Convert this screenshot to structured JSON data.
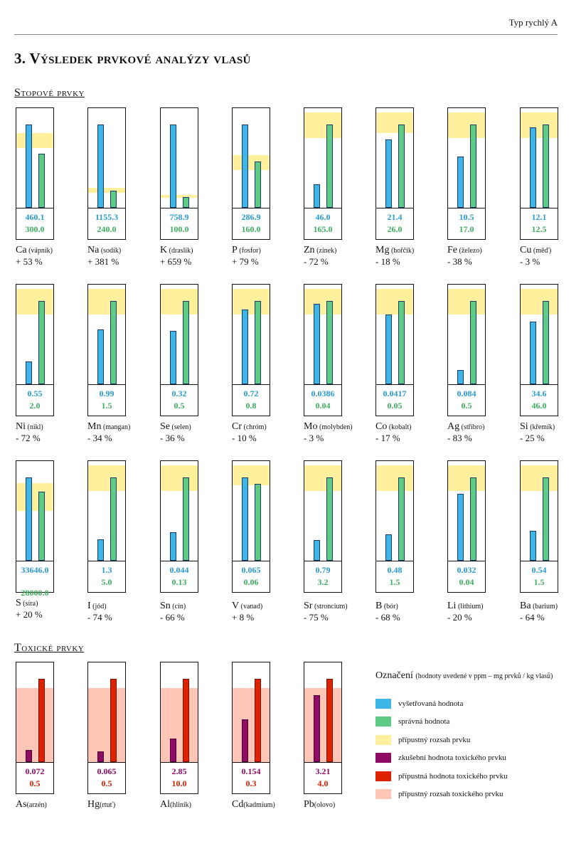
{
  "header": {
    "type_label": "Typ rychlý A"
  },
  "title": "3. Výsledek prvkové analýzy vlasů",
  "sections": {
    "trace": "Stopové prvky",
    "toxic": "Toxické prvky"
  },
  "colors": {
    "measured": "#3db5e6",
    "correct": "#5ecb85",
    "range": "#fff09e",
    "toxic_measured": "#8e0c63",
    "toxic_allowed": "#dd2200",
    "toxic_range": "#ffc6b8",
    "measured_text": "#2a9ad0",
    "correct_text": "#3eae5e",
    "toxic_measured_text": "#8e0c63",
    "toxic_allowed_text": "#d42000"
  },
  "chart_data": {
    "type": "bar",
    "title": "",
    "trace_elements": [
      {
        "symbol": "Ca",
        "name": "(vápník)",
        "measured": "460.1",
        "correct": "300.0",
        "pct": "+ 53 %",
        "range_pct": [
          60,
          75
        ]
      },
      {
        "symbol": "Na",
        "name": "(sodík)",
        "measured": "1155.3",
        "correct": "240.0",
        "pct": "+ 381 %",
        "range_pct": [
          15,
          20
        ]
      },
      {
        "symbol": "K",
        "name": "(draslík)",
        "measured": "758.9",
        "correct": "100.0",
        "pct": "+ 659 %",
        "range_pct": [
          10,
          13
        ]
      },
      {
        "symbol": "P",
        "name": "(fosfor)",
        "measured": "286.9",
        "correct": "160.0",
        "pct": "+ 79 %",
        "range_pct": [
          38,
          53
        ]
      },
      {
        "symbol": "Zn",
        "name": "(zinek)",
        "measured": "46.0",
        "correct": "165.0",
        "pct": "- 72 %",
        "range_pct": [
          70,
          96
        ]
      },
      {
        "symbol": "Mg",
        "name": "(hořčík)",
        "measured": "21.4",
        "correct": "26.0",
        "pct": "- 18 %",
        "range_pct": [
          75,
          96
        ]
      },
      {
        "symbol": "Fe",
        "name": "(železo)",
        "measured": "10.5",
        "correct": "17.0",
        "pct": "- 38 %",
        "range_pct": [
          70,
          96
        ]
      },
      {
        "symbol": "Cu",
        "name": "(měď)",
        "measured": "12.1",
        "correct": "12.5",
        "pct": "- 3 %",
        "range_pct": [
          70,
          96
        ]
      },
      {
        "symbol": "Ni",
        "name": "(nikl)",
        "measured": "0.55",
        "correct": "2.0",
        "pct": "- 72 %",
        "range_pct": [
          70,
          96
        ]
      },
      {
        "symbol": "Mn",
        "name": "(mangan)",
        "measured": "0.99",
        "correct": "1.5",
        "pct": "- 34 %",
        "range_pct": [
          70,
          96
        ]
      },
      {
        "symbol": "Se",
        "name": "(selen)",
        "measured": "0.32",
        "correct": "0.5",
        "pct": "- 36 %",
        "range_pct": [
          70,
          96
        ]
      },
      {
        "symbol": "Cr",
        "name": "(chróm)",
        "measured": "0.72",
        "correct": "0.8",
        "pct": "- 10 %",
        "range_pct": [
          70,
          96
        ]
      },
      {
        "symbol": "Mo",
        "name": "(molybden)",
        "measured": "0.0386",
        "correct": "0.04",
        "pct": "- 3 %",
        "range_pct": [
          70,
          96
        ]
      },
      {
        "symbol": "Co",
        "name": "(kobalt)",
        "measured": "0.0417",
        "correct": "0.05",
        "pct": "- 17 %",
        "range_pct": [
          70,
          96
        ]
      },
      {
        "symbol": "Ag",
        "name": "(stříbro)",
        "measured": "0.084",
        "correct": "0.5",
        "pct": "- 83 %",
        "range_pct": [
          70,
          96
        ]
      },
      {
        "symbol": "Si",
        "name": "(křemík)",
        "measured": "34.6",
        "correct": "46.0",
        "pct": "- 25 %",
        "range_pct": [
          70,
          96
        ]
      },
      {
        "symbol": "S",
        "name": "(síra)",
        "measured": "33646.0",
        "correct": "28000.0",
        "pct": "+ 20 %",
        "range_pct": [
          50,
          78
        ]
      },
      {
        "symbol": "I",
        "name": "(jód)",
        "measured": "1.3",
        "correct": "5.0",
        "pct": "- 74 %",
        "range_pct": [
          70,
          96
        ]
      },
      {
        "symbol": "Sn",
        "name": "(cín)",
        "measured": "0.044",
        "correct": "0.13",
        "pct": "- 66 %",
        "range_pct": [
          70,
          96
        ]
      },
      {
        "symbol": "V",
        "name": "(vanad)",
        "measured": "0.065",
        "correct": "0.06",
        "pct": "+ 8 %",
        "range_pct": [
          76,
          96
        ]
      },
      {
        "symbol": "Sr",
        "name": "(stroncium)",
        "measured": "0.79",
        "correct": "3.2",
        "pct": "- 75 %",
        "range_pct": [
          70,
          96
        ]
      },
      {
        "symbol": "B",
        "name": "(bór)",
        "measured": "0.48",
        "correct": "1.5",
        "pct": "- 68 %",
        "range_pct": [
          70,
          96
        ]
      },
      {
        "symbol": "Li",
        "name": "(lithium)",
        "measured": "0.032",
        "correct": "0.04",
        "pct": "- 20 %",
        "range_pct": [
          70,
          96
        ]
      },
      {
        "symbol": "Ba",
        "name": "(barium)",
        "measured": "0.54",
        "correct": "1.5",
        "pct": "- 64 %",
        "range_pct": [
          70,
          96
        ]
      }
    ],
    "toxic_elements": [
      {
        "symbol": "As",
        "name": "(arzén)",
        "measured": "0.072",
        "allowed": "0.5"
      },
      {
        "symbol": "Hg",
        "name": "(rtuť)",
        "measured": "0.065",
        "allowed": "0.5"
      },
      {
        "symbol": "Al",
        "name": "(hliník)",
        "measured": "2.85",
        "allowed": "10.0"
      },
      {
        "symbol": "Cd",
        "name": "(kadmium)",
        "measured": "0.154",
        "allowed": "0.3"
      },
      {
        "symbol": "Pb",
        "name": "(olovo)",
        "measured": "3.21",
        "allowed": "4.0"
      }
    ]
  },
  "legend": {
    "title": "Označení",
    "subtitle": "(hodnoty uvedené v ppm – mg prvků / kg vlasů)",
    "items": [
      {
        "label": "vyšetřovaná hodnota",
        "color": "#3db5e6"
      },
      {
        "label": "správná hodnota",
        "color": "#5ecb85"
      },
      {
        "label": "přípustný rozsah prvku",
        "color": "#fff09e"
      },
      {
        "label": "zkušební hodnota toxického prvku",
        "color": "#8e0c63"
      },
      {
        "label": "přípustná hodnota toxického prvku",
        "color": "#dd2200"
      },
      {
        "label": "přípustný rozsah toxického prvku",
        "color": "#ffc6b8"
      }
    ]
  }
}
